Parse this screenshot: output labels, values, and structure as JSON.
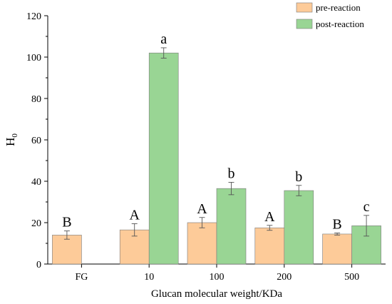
{
  "chart_data": {
    "type": "bar",
    "categories": [
      "FG",
      "10",
      "100",
      "200",
      "500"
    ],
    "series": [
      {
        "name": "pre-reaction",
        "color": "#FDCB99",
        "values": [
          14,
          16.5,
          20,
          17.5,
          14.5
        ],
        "errors": [
          2,
          3,
          2.5,
          1.2,
          0.5
        ],
        "sig_labels": [
          "B",
          "A",
          "A",
          "A",
          "B"
        ]
      },
      {
        "name": "post-reaction",
        "color": "#99D594",
        "values": [
          null,
          102,
          36.5,
          35.5,
          18.5
        ],
        "errors": [
          null,
          2.5,
          3,
          2.5,
          5
        ],
        "sig_labels": [
          "",
          "a",
          "b",
          "b",
          "c"
        ]
      }
    ],
    "xlabel": "Glucan molecular weight/KDa",
    "ylabel_main": "H",
    "ylabel_sub": "0",
    "ylim": [
      0,
      120
    ],
    "yticks": [
      0,
      20,
      40,
      60,
      80,
      100,
      120
    ],
    "legend_position": "top-right",
    "grid": false
  }
}
